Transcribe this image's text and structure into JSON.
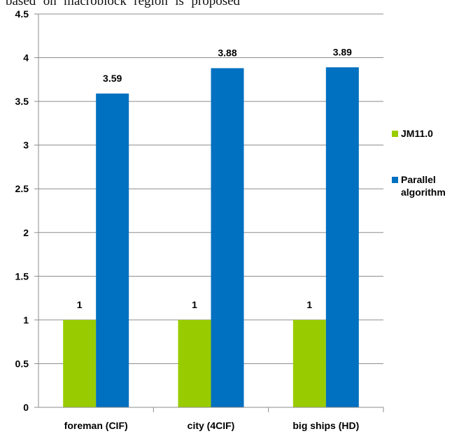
{
  "page_text_cutoff": "based on macroblock region is proposed",
  "chart_data": {
    "type": "bar",
    "title": "",
    "xlabel": "",
    "ylabel": "",
    "categories": [
      "foreman (CIF)",
      "city (4CIF)",
      "big ships (HD)"
    ],
    "series": [
      {
        "name": "JM11.0",
        "color": "#99CC00",
        "values": [
          1,
          1,
          1
        ],
        "labels": [
          "1",
          "1",
          "1"
        ]
      },
      {
        "name": "Parallel algorithm",
        "color": "#0070C0",
        "values": [
          3.59,
          3.88,
          3.89
        ],
        "labels": [
          "3.59",
          "3.88",
          "3.89"
        ]
      }
    ],
    "ylim": [
      0,
      4.5
    ],
    "yticks": [
      "0",
      "0.5",
      "1",
      "1.5",
      "2",
      "2.5",
      "3",
      "3.5",
      "4",
      "4.5"
    ],
    "grid": true,
    "legend_position": "right"
  }
}
